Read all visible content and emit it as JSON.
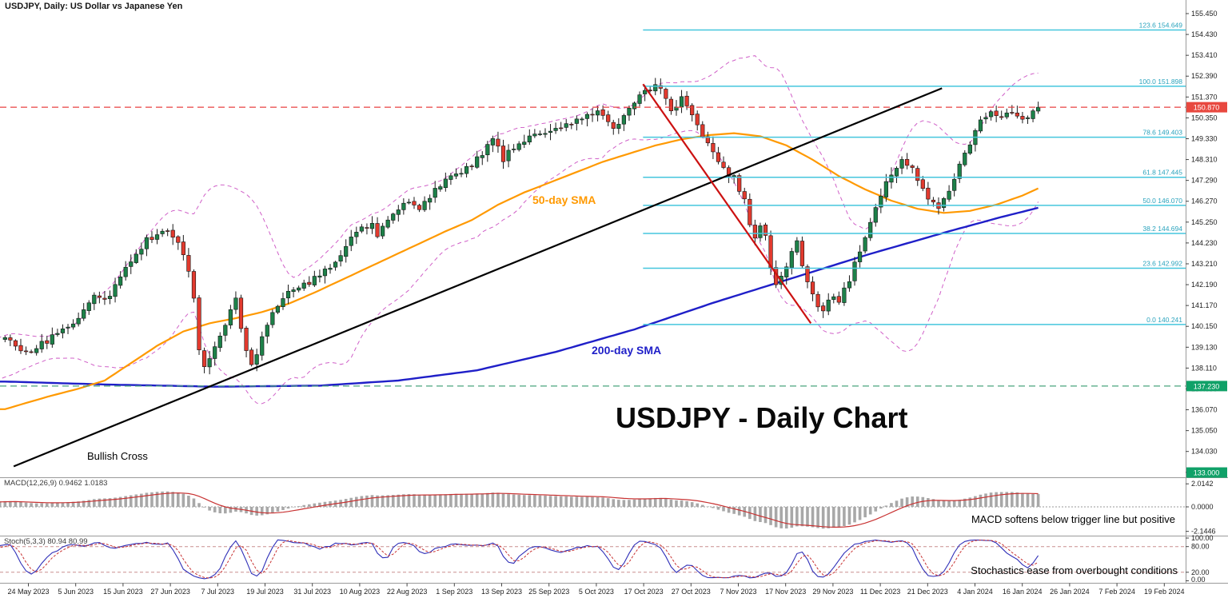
{
  "window": {
    "title": "USDJPY, Daily: US Dollar vs Japanese Yen"
  },
  "annotations": {
    "chart_title": "USDJPY - Daily Chart",
    "bullish_cross": "Bullish Cross",
    "sma50_label": "50-day SMA",
    "sma200_label": "200-day SMA",
    "macd_note": "MACD softens below trigger line but positive",
    "stoch_note": "Stochastics ease from overbought conditions"
  },
  "indicators": {
    "macd_label": "MACD(12,26,9) 0.9462 1.0183",
    "stoch_label": "Stoch(5,3,3) 80.94 80.99"
  },
  "axes": {
    "price_ticks": [
      "155.450",
      "154.430",
      "153.410",
      "152.390",
      "151.370",
      "150.350",
      "149.330",
      "148.310",
      "147.290",
      "146.270",
      "145.250",
      "144.230",
      "143.210",
      "142.190",
      "141.170",
      "140.150",
      "139.130",
      "138.110",
      "137.090",
      "136.070",
      "135.050",
      "134.030",
      "133.010"
    ],
    "date_ticks": [
      "24 May 2023",
      "5 Jun 2023",
      "15 Jun 2023",
      "27 Jun 2023",
      "7 Jul 2023",
      "19 Jul 2023",
      "31 Jul 2023",
      "10 Aug 2023",
      "22 Aug 2023",
      "1 Sep 2023",
      "13 Sep 2023",
      "25 Sep 2023",
      "5 Oct 2023",
      "17 Oct 2023",
      "27 Oct 2023",
      "7 Nov 2023",
      "17 Nov 2023",
      "29 Nov 2023",
      "11 Dec 2023",
      "21 Dec 2023",
      "4 Jan 2024",
      "16 Jan 2024",
      "26 Jan 2024",
      "7 Feb 2024",
      "19 Feb 2024"
    ],
    "macd_ticks": [
      "2.0142",
      "0.0000",
      "-2.1446"
    ],
    "stoch_ticks": [
      "100.00",
      "80.00",
      "20.00",
      "0.00"
    ]
  },
  "levels": {
    "fibo": [
      {
        "pct": "123.6",
        "price": 154.649,
        "price_label": "154.649",
        "annotation": "154.64 (123.6% Fibo)",
        "annotation_color": "#cc2222"
      },
      {
        "pct": "100.0",
        "price": 151.898,
        "price_label": "151.898",
        "annotation": "151.90",
        "annotation_color": "#cc2222"
      },
      {
        "pct": "78.6",
        "price": 149.403,
        "price_label": "149.403",
        "annotation": "149.40 (78.6% Fibo)",
        "annotation_color": "#2e8b57"
      },
      {
        "pct": "61.8",
        "price": 147.445,
        "price_label": "147.445",
        "annotation": "147.44 (61.8% Fibo)",
        "annotation_color": "#2e8b57"
      },
      {
        "pct": "50.0",
        "price": 146.07,
        "price_label": "146.070",
        "annotation": "146.07 (50.0% Fibo)",
        "annotation_color": "#2e8b57"
      },
      {
        "pct": "38.2",
        "price": 144.694,
        "price_label": "144.694",
        "annotation": "144.69 (38.2% Fibo)",
        "annotation_color": "#2e8b57"
      },
      {
        "pct": "23.6",
        "price": 142.992,
        "price_label": "142.992",
        "annotation": "143.00 (23.6% Fibo)",
        "annotation_color": "#2e8b57"
      },
      {
        "pct": "0.0",
        "price": 140.241,
        "price_label": "140.241",
        "annotation": "140.24",
        "annotation_color": "#2e8b57"
      }
    ],
    "hlines": [
      {
        "price": 150.87,
        "annotation": "150.87",
        "annotation_color": "#cc2222",
        "badge": "150.870",
        "badge_color": "#e8483f",
        "line_color": "#e84040",
        "dashed": true
      },
      {
        "price": 137.23,
        "annotation": "137.23",
        "annotation_color": "#2e8b57",
        "badge": "137.230",
        "badge_color": "#10a168",
        "line_color": "#4aa47e",
        "dashed": true
      },
      {
        "price": 133.0,
        "annotation": "",
        "annotation_color": "",
        "badge": "133.000",
        "badge_color": "#10a168",
        "line_color": "",
        "dashed": false
      }
    ]
  },
  "colors": {
    "bull_candle": "#1d8149",
    "bear_candle": "#e23a2e",
    "wick": "#1a1a1a",
    "bollinger": "#d060c8",
    "sma50": "#ff9900",
    "sma200": "#1f1fc8",
    "fibo_line": "#45c6dd",
    "fibo_small_label": "#2aa3bd",
    "current_price_line": "#e84040",
    "support_line": "#4aa47e",
    "annotation_red": "#cc2222",
    "annotation_green": "#2e8b57",
    "macd_hist": "#a8a8a8",
    "macd_signal": "#c83232",
    "stoch_k": "#2f2fb8",
    "stoch_d": "#c83232"
  },
  "chart_data": {
    "type": "candlestick",
    "symbol": "USDJPY",
    "timeframe": "Daily",
    "title": "USDJPY - Daily Chart",
    "x_range": [
      "24 May 2023",
      "26 Feb 2024"
    ],
    "y_range": [
      133.0,
      156.1
    ],
    "current_price": 150.87,
    "price_path": [
      [
        0,
        139.6
      ],
      [
        2,
        139.25
      ],
      [
        4,
        138.95
      ],
      [
        6,
        139.1
      ],
      [
        8,
        139.45
      ],
      [
        10,
        139.8
      ],
      [
        12,
        140.15
      ],
      [
        14,
        140.6
      ],
      [
        16,
        141.35
      ],
      [
        17,
        141.8
      ],
      [
        19,
        141.45
      ],
      [
        21,
        142.1
      ],
      [
        23,
        143.0
      ],
      [
        25,
        143.7
      ],
      [
        27,
        144.35
      ],
      [
        29,
        144.6
      ],
      [
        31,
        144.9
      ],
      [
        33,
        144.35
      ],
      [
        35,
        142.9
      ],
      [
        36,
        141.6
      ],
      [
        37,
        139.1
      ],
      [
        38,
        138.25
      ],
      [
        39,
        138.6
      ],
      [
        41,
        139.6
      ],
      [
        43,
        141.1
      ],
      [
        44,
        141.5
      ],
      [
        45,
        140.1
      ],
      [
        46,
        138.95
      ],
      [
        47,
        138.35
      ],
      [
        48,
        138.9
      ],
      [
        50,
        140.2
      ],
      [
        52,
        141.2
      ],
      [
        54,
        141.75
      ],
      [
        56,
        142.0
      ],
      [
        58,
        142.3
      ],
      [
        60,
        142.65
      ],
      [
        62,
        143.05
      ],
      [
        64,
        143.75
      ],
      [
        66,
        144.55
      ],
      [
        68,
        145.1
      ],
      [
        70,
        145.05
      ],
      [
        71,
        144.55
      ],
      [
        73,
        145.5
      ],
      [
        75,
        145.95
      ],
      [
        77,
        146.1
      ],
      [
        79,
        146.0
      ],
      [
        81,
        146.55
      ],
      [
        83,
        147.1
      ],
      [
        85,
        147.5
      ],
      [
        87,
        147.7
      ],
      [
        89,
        148.1
      ],
      [
        91,
        148.65
      ],
      [
        93,
        149.4
      ],
      [
        94,
        148.85
      ],
      [
        95,
        148.35
      ],
      [
        97,
        148.95
      ],
      [
        99,
        149.25
      ],
      [
        101,
        149.55
      ],
      [
        103,
        149.7
      ],
      [
        105,
        149.85
      ],
      [
        107,
        150.0
      ],
      [
        109,
        150.25
      ],
      [
        111,
        150.45
      ],
      [
        113,
        150.6
      ],
      [
        115,
        150.15
      ],
      [
        116,
        149.7
      ],
      [
        118,
        150.55
      ],
      [
        120,
        151.2
      ],
      [
        122,
        151.65
      ],
      [
        124,
        151.9
      ],
      [
        126,
        151.4
      ],
      [
        127,
        150.7
      ],
      [
        129,
        151.25
      ],
      [
        131,
        150.35
      ],
      [
        133,
        149.5
      ],
      [
        135,
        148.6
      ],
      [
        137,
        147.85
      ],
      [
        139,
        147.4
      ],
      [
        141,
        146.3
      ],
      [
        142,
        145.0
      ],
      [
        143,
        144.55
      ],
      [
        144,
        145.15
      ],
      [
        145,
        144.6
      ],
      [
        146,
        142.95
      ],
      [
        147,
        142.25
      ],
      [
        148,
        142.55
      ],
      [
        150,
        143.8
      ],
      [
        151,
        144.2
      ],
      [
        152,
        143.25
      ],
      [
        153,
        142.35
      ],
      [
        154,
        141.85
      ],
      [
        155,
        141.25
      ],
      [
        156,
        140.85
      ],
      [
        157,
        141.35
      ],
      [
        158,
        141.65
      ],
      [
        159,
        141.45
      ],
      [
        161,
        142.45
      ],
      [
        163,
        143.85
      ],
      [
        165,
        145.25
      ],
      [
        167,
        146.6
      ],
      [
        169,
        147.6
      ],
      [
        171,
        148.25
      ],
      [
        173,
        147.85
      ],
      [
        175,
        146.9
      ],
      [
        176,
        146.35
      ],
      [
        178,
        146.05
      ],
      [
        180,
        146.9
      ],
      [
        182,
        148.05
      ],
      [
        184,
        148.95
      ],
      [
        186,
        150.25
      ],
      [
        188,
        150.7
      ],
      [
        190,
        150.45
      ],
      [
        192,
        150.6
      ],
      [
        194,
        150.35
      ],
      [
        196,
        150.6
      ],
      [
        197,
        150.87
      ]
    ],
    "overlays": {
      "bollinger": {
        "period": 20,
        "deviation": 2
      },
      "sma50": [
        [
          0,
          136.1
        ],
        [
          8,
          136.7
        ],
        [
          14,
          137.1
        ],
        [
          19,
          137.5
        ],
        [
          24,
          138.35
        ],
        [
          29,
          139.2
        ],
        [
          34,
          139.9
        ],
        [
          39,
          140.3
        ],
        [
          44,
          140.55
        ],
        [
          49,
          140.85
        ],
        [
          54,
          141.25
        ],
        [
          59,
          141.8
        ],
        [
          64,
          142.4
        ],
        [
          69,
          143.0
        ],
        [
          74,
          143.6
        ],
        [
          79,
          144.2
        ],
        [
          84,
          144.8
        ],
        [
          89,
          145.35
        ],
        [
          94,
          146.1
        ],
        [
          99,
          146.7
        ],
        [
          104,
          147.2
        ],
        [
          109,
          147.7
        ],
        [
          114,
          148.2
        ],
        [
          119,
          148.6
        ],
        [
          124,
          149.0
        ],
        [
          129,
          149.3
        ],
        [
          134,
          149.5
        ],
        [
          139,
          149.6
        ],
        [
          144,
          149.45
        ],
        [
          149,
          149.0
        ],
        [
          154,
          148.3
        ],
        [
          159,
          147.5
        ],
        [
          164,
          146.85
        ],
        [
          169,
          146.3
        ],
        [
          174,
          145.9
        ],
        [
          179,
          145.7
        ],
        [
          184,
          145.8
        ],
        [
          189,
          146.1
        ],
        [
          194,
          146.55
        ],
        [
          197,
          146.9
        ]
      ],
      "sma200": [
        [
          0,
          137.45
        ],
        [
          20,
          137.3
        ],
        [
          40,
          137.2
        ],
        [
          60,
          137.25
        ],
        [
          75,
          137.5
        ],
        [
          90,
          138.0
        ],
        [
          105,
          138.9
        ],
        [
          120,
          140.0
        ],
        [
          135,
          141.3
        ],
        [
          150,
          142.5
        ],
        [
          165,
          143.7
        ],
        [
          180,
          144.8
        ],
        [
          190,
          145.5
        ],
        [
          197,
          145.95
        ]
      ]
    },
    "trendlines": [
      {
        "name": "bullish-uptrend-line",
        "color": "#000000",
        "from": [
          2,
          133.3
        ],
        "to": [
          179,
          151.8
        ]
      },
      {
        "name": "bearish-downtrend-line",
        "color": "#cc1111",
        "from": [
          122,
          152.0
        ],
        "to": [
          154,
          140.3
        ]
      }
    ],
    "macd": {
      "fast": 12,
      "slow": 26,
      "signal": 9,
      "current_macd": 0.9462,
      "current_signal": 1.0183
    },
    "stochastic": {
      "k": 5,
      "slowing": 3,
      "d": 3,
      "current_k": 80.94,
      "current_d": 80.99,
      "levels": [
        80,
        20
      ]
    }
  }
}
